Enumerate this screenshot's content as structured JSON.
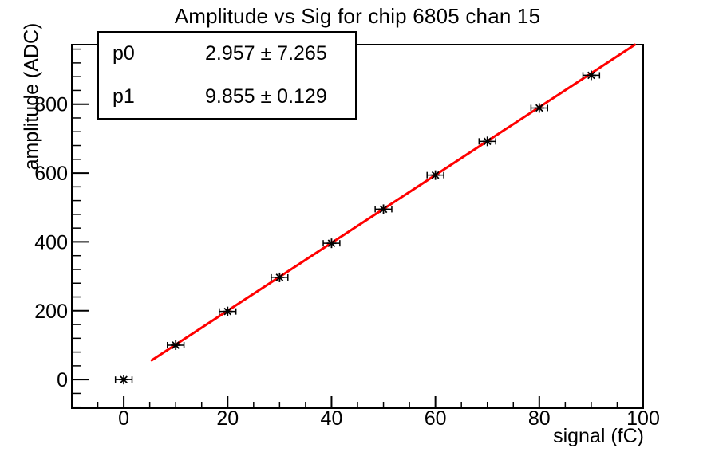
{
  "title": "Amplitude vs Sig for chip 6805 chan 15",
  "stats_box": {
    "rows": [
      {
        "param": "p0",
        "value": "2.957 ± 7.265"
      },
      {
        "param": "p1",
        "value": "9.855 ± 0.129"
      }
    ]
  },
  "chart_data": {
    "type": "scatter",
    "title": "Amplitude vs Sig for chip 6805 chan 15",
    "xlabel": "signal (fC)",
    "ylabel": "amplitude (ADC)",
    "x": [
      0,
      10,
      20,
      30,
      40,
      50,
      60,
      70,
      80,
      90
    ],
    "y": [
      0,
      100,
      198,
      297,
      396,
      495,
      594,
      692,
      789,
      884
    ],
    "x_error": 1.6,
    "fit": {
      "name": "linear",
      "p0": 2.957,
      "p1": 9.855,
      "x_start": 5.4,
      "x_end": 98.4,
      "color": "#ff0000"
    },
    "xlim": [
      -10,
      100
    ],
    "ylim": [
      -83,
      973
    ],
    "x_ticks": [
      0,
      20,
      40,
      60,
      80,
      100
    ],
    "y_ticks": [
      0,
      200,
      400,
      600,
      800
    ],
    "x_minor_step": 5,
    "y_minor_step": 40,
    "marker": "asterisk",
    "marker_color": "#000000",
    "axis_color": "#000000",
    "background": "#ffffff",
    "grid": false,
    "legend": "none"
  }
}
